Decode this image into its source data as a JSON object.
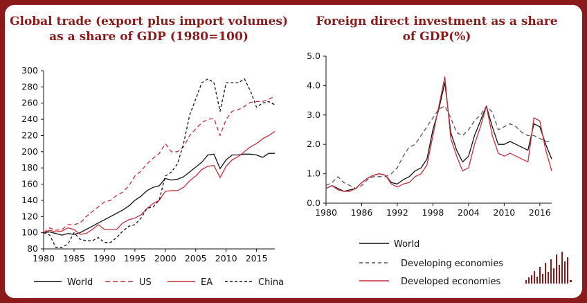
{
  "chart_data": [
    {
      "type": "line",
      "title": [
        "Global trade (export plus import volumes)",
        "as a share of GDP (1980=100)"
      ],
      "xlabel": "",
      "ylabel": "",
      "xlim": [
        1980,
        2018
      ],
      "ylim": [
        80,
        300
      ],
      "y_ticks": [
        "300",
        "280",
        "260",
        "240",
        "220",
        "200",
        "180",
        "160",
        "140",
        "120",
        "100",
        "80"
      ],
      "x_ticks": [
        "1980",
        "1985",
        "1990",
        "1995",
        "2000",
        "2005",
        "2010",
        "2015"
      ],
      "grid": false,
      "legend_position": "bottom",
      "series": [
        {
          "name": "World",
          "style": "solid",
          "color": "#111111",
          "x": [
            1980,
            1981,
            1982,
            1983,
            1984,
            1985,
            1986,
            1987,
            1988,
            1989,
            1990,
            1991,
            1992,
            1993,
            1994,
            1995,
            1996,
            1997,
            1998,
            1999,
            2000,
            2001,
            2002,
            2003,
            2004,
            2005,
            2006,
            2007,
            2008,
            2009,
            2010,
            2011,
            2012,
            2013,
            2014,
            2015,
            2016,
            2017,
            2018
          ],
          "values": [
            100,
            101,
            99,
            97,
            99,
            98,
            100,
            104,
            108,
            112,
            116,
            120,
            124,
            128,
            133,
            140,
            145,
            152,
            156,
            158,
            167,
            165,
            166,
            169,
            175,
            181,
            187,
            196,
            197,
            179,
            190,
            196,
            196,
            197,
            197,
            196,
            193,
            198,
            198
          ]
        },
        {
          "name": "US",
          "style": "dashed",
          "color": "#c62f3a",
          "x": [
            1980,
            1981,
            1982,
            1983,
            1984,
            1985,
            1986,
            1987,
            1988,
            1989,
            1990,
            1991,
            1992,
            1993,
            1994,
            1995,
            1996,
            1997,
            1998,
            1999,
            2000,
            2001,
            2002,
            2003,
            2004,
            2005,
            2006,
            2007,
            2008,
            2009,
            2010,
            2011,
            2012,
            2013,
            2014,
            2015,
            2016,
            2017,
            2018
          ],
          "values": [
            100,
            106,
            103,
            104,
            110,
            110,
            112,
            120,
            126,
            132,
            138,
            140,
            146,
            150,
            158,
            170,
            176,
            185,
            192,
            198,
            210,
            200,
            200,
            206,
            220,
            228,
            236,
            240,
            241,
            220,
            240,
            250,
            252,
            256,
            261,
            262,
            262,
            265,
            268
          ]
        },
        {
          "name": "EA",
          "style": "solid",
          "color": "#c62f3a",
          "x": [
            1980,
            1981,
            1982,
            1983,
            1984,
            1985,
            1986,
            1987,
            1988,
            1989,
            1990,
            1991,
            1992,
            1993,
            1994,
            1995,
            1996,
            1997,
            1998,
            1999,
            2000,
            2001,
            2002,
            2003,
            2004,
            2005,
            2006,
            2007,
            2008,
            2009,
            2010,
            2011,
            2012,
            2013,
            2014,
            2015,
            2016,
            2017,
            2018
          ],
          "values": [
            100,
            103,
            101,
            102,
            106,
            104,
            98,
            99,
            104,
            110,
            104,
            104,
            104,
            112,
            116,
            118,
            122,
            130,
            136,
            140,
            151,
            152,
            152,
            156,
            164,
            170,
            178,
            182,
            183,
            168,
            182,
            190,
            194,
            200,
            206,
            210,
            216,
            220,
            225
          ]
        },
        {
          "name": "China",
          "style": "dashed",
          "color": "#111111",
          "x": [
            1980,
            1981,
            1982,
            1983,
            1984,
            1985,
            1986,
            1987,
            1988,
            1989,
            1990,
            1991,
            1992,
            1993,
            1994,
            1995,
            1996,
            1997,
            1998,
            1999,
            2000,
            2001,
            2002,
            2003,
            2004,
            2005,
            2006,
            2007,
            2008,
            2009,
            2010,
            2011,
            2012,
            2013,
            2014,
            2015,
            2016,
            2017,
            2018
          ],
          "values": [
            100,
            97,
            82,
            82,
            86,
            100,
            92,
            90,
            90,
            94,
            88,
            88,
            94,
            102,
            108,
            110,
            118,
            130,
            132,
            140,
            170,
            175,
            185,
            210,
            245,
            265,
            285,
            290,
            285,
            250,
            285,
            285,
            285,
            290,
            275,
            255,
            260,
            262,
            258
          ]
        }
      ]
    },
    {
      "type": "line",
      "title": [
        "Foreign direct investment as a share",
        "of GDP(%)"
      ],
      "xlabel": "",
      "ylabel": "",
      "xlim": [
        1980,
        2018
      ],
      "ylim": [
        0,
        5
      ],
      "y_ticks": [
        "5.0",
        "4.0",
        "3.0",
        "2.0",
        "1.0",
        "0.0"
      ],
      "x_ticks": [
        "1980",
        "1986",
        "1992",
        "1998",
        "2004",
        "2010",
        "2016"
      ],
      "grid": false,
      "legend_position": "bottom",
      "series": [
        {
          "name": "World",
          "style": "solid",
          "color": "#111111",
          "x": [
            1980,
            1981,
            1982,
            1983,
            1984,
            1985,
            1986,
            1987,
            1988,
            1989,
            1990,
            1991,
            1992,
            1993,
            1994,
            1995,
            1996,
            1997,
            1998,
            1999,
            2000,
            2001,
            2002,
            2003,
            2004,
            2005,
            2006,
            2007,
            2008,
            2009,
            2010,
            2011,
            2012,
            2013,
            2014,
            2015,
            2016,
            2017,
            2018
          ],
          "values": [
            0.5,
            0.6,
            0.5,
            0.4,
            0.45,
            0.5,
            0.7,
            0.85,
            0.95,
            1.0,
            0.95,
            0.7,
            0.65,
            0.8,
            0.9,
            1.1,
            1.2,
            1.5,
            2.5,
            3.2,
            4.1,
            2.4,
            1.8,
            1.4,
            1.6,
            2.3,
            2.8,
            3.3,
            2.6,
            2.0,
            2.0,
            2.1,
            2.0,
            1.9,
            1.8,
            2.7,
            2.6,
            2.0,
            1.5
          ]
        },
        {
          "name": "Developing economies",
          "style": "dashed",
          "color": "#555555",
          "x": [
            1980,
            1981,
            1982,
            1983,
            1984,
            1985,
            1986,
            1987,
            1988,
            1989,
            1990,
            1991,
            1992,
            1993,
            1994,
            1995,
            1996,
            1997,
            1998,
            1999,
            2000,
            2001,
            2002,
            2003,
            2004,
            2005,
            2006,
            2007,
            2008,
            2009,
            2010,
            2011,
            2012,
            2013,
            2014,
            2015,
            2016,
            2017,
            2018
          ],
          "values": [
            0.6,
            0.7,
            0.9,
            0.7,
            0.6,
            0.5,
            0.6,
            0.8,
            0.9,
            0.9,
            0.9,
            1.0,
            1.2,
            1.6,
            1.9,
            2.0,
            2.3,
            2.6,
            2.9,
            3.2,
            3.3,
            2.9,
            2.4,
            2.3,
            2.5,
            2.8,
            3.0,
            3.3,
            3.1,
            2.5,
            2.6,
            2.7,
            2.6,
            2.4,
            2.3,
            2.3,
            2.2,
            2.1,
            2.1
          ]
        },
        {
          "name": "Developed economies",
          "style": "solid",
          "color": "#c62f3a",
          "x": [
            1980,
            1981,
            1982,
            1983,
            1984,
            1985,
            1986,
            1987,
            1988,
            1989,
            1990,
            1991,
            1992,
            1993,
            1994,
            1995,
            1996,
            1997,
            1998,
            1999,
            2000,
            2001,
            2002,
            2003,
            2004,
            2005,
            2006,
            2007,
            2008,
            2009,
            2010,
            2011,
            2012,
            2013,
            2014,
            2015,
            2016,
            2017,
            2018
          ],
          "values": [
            0.5,
            0.6,
            0.45,
            0.4,
            0.4,
            0.5,
            0.7,
            0.85,
            0.95,
            1.0,
            0.95,
            0.65,
            0.55,
            0.65,
            0.7,
            0.9,
            1.0,
            1.3,
            2.3,
            3.3,
            4.3,
            2.2,
            1.6,
            1.1,
            1.2,
            2.0,
            2.6,
            3.3,
            2.3,
            1.7,
            1.6,
            1.7,
            1.6,
            1.5,
            1.4,
            2.9,
            2.8,
            1.8,
            1.1
          ]
        }
      ]
    }
  ]
}
